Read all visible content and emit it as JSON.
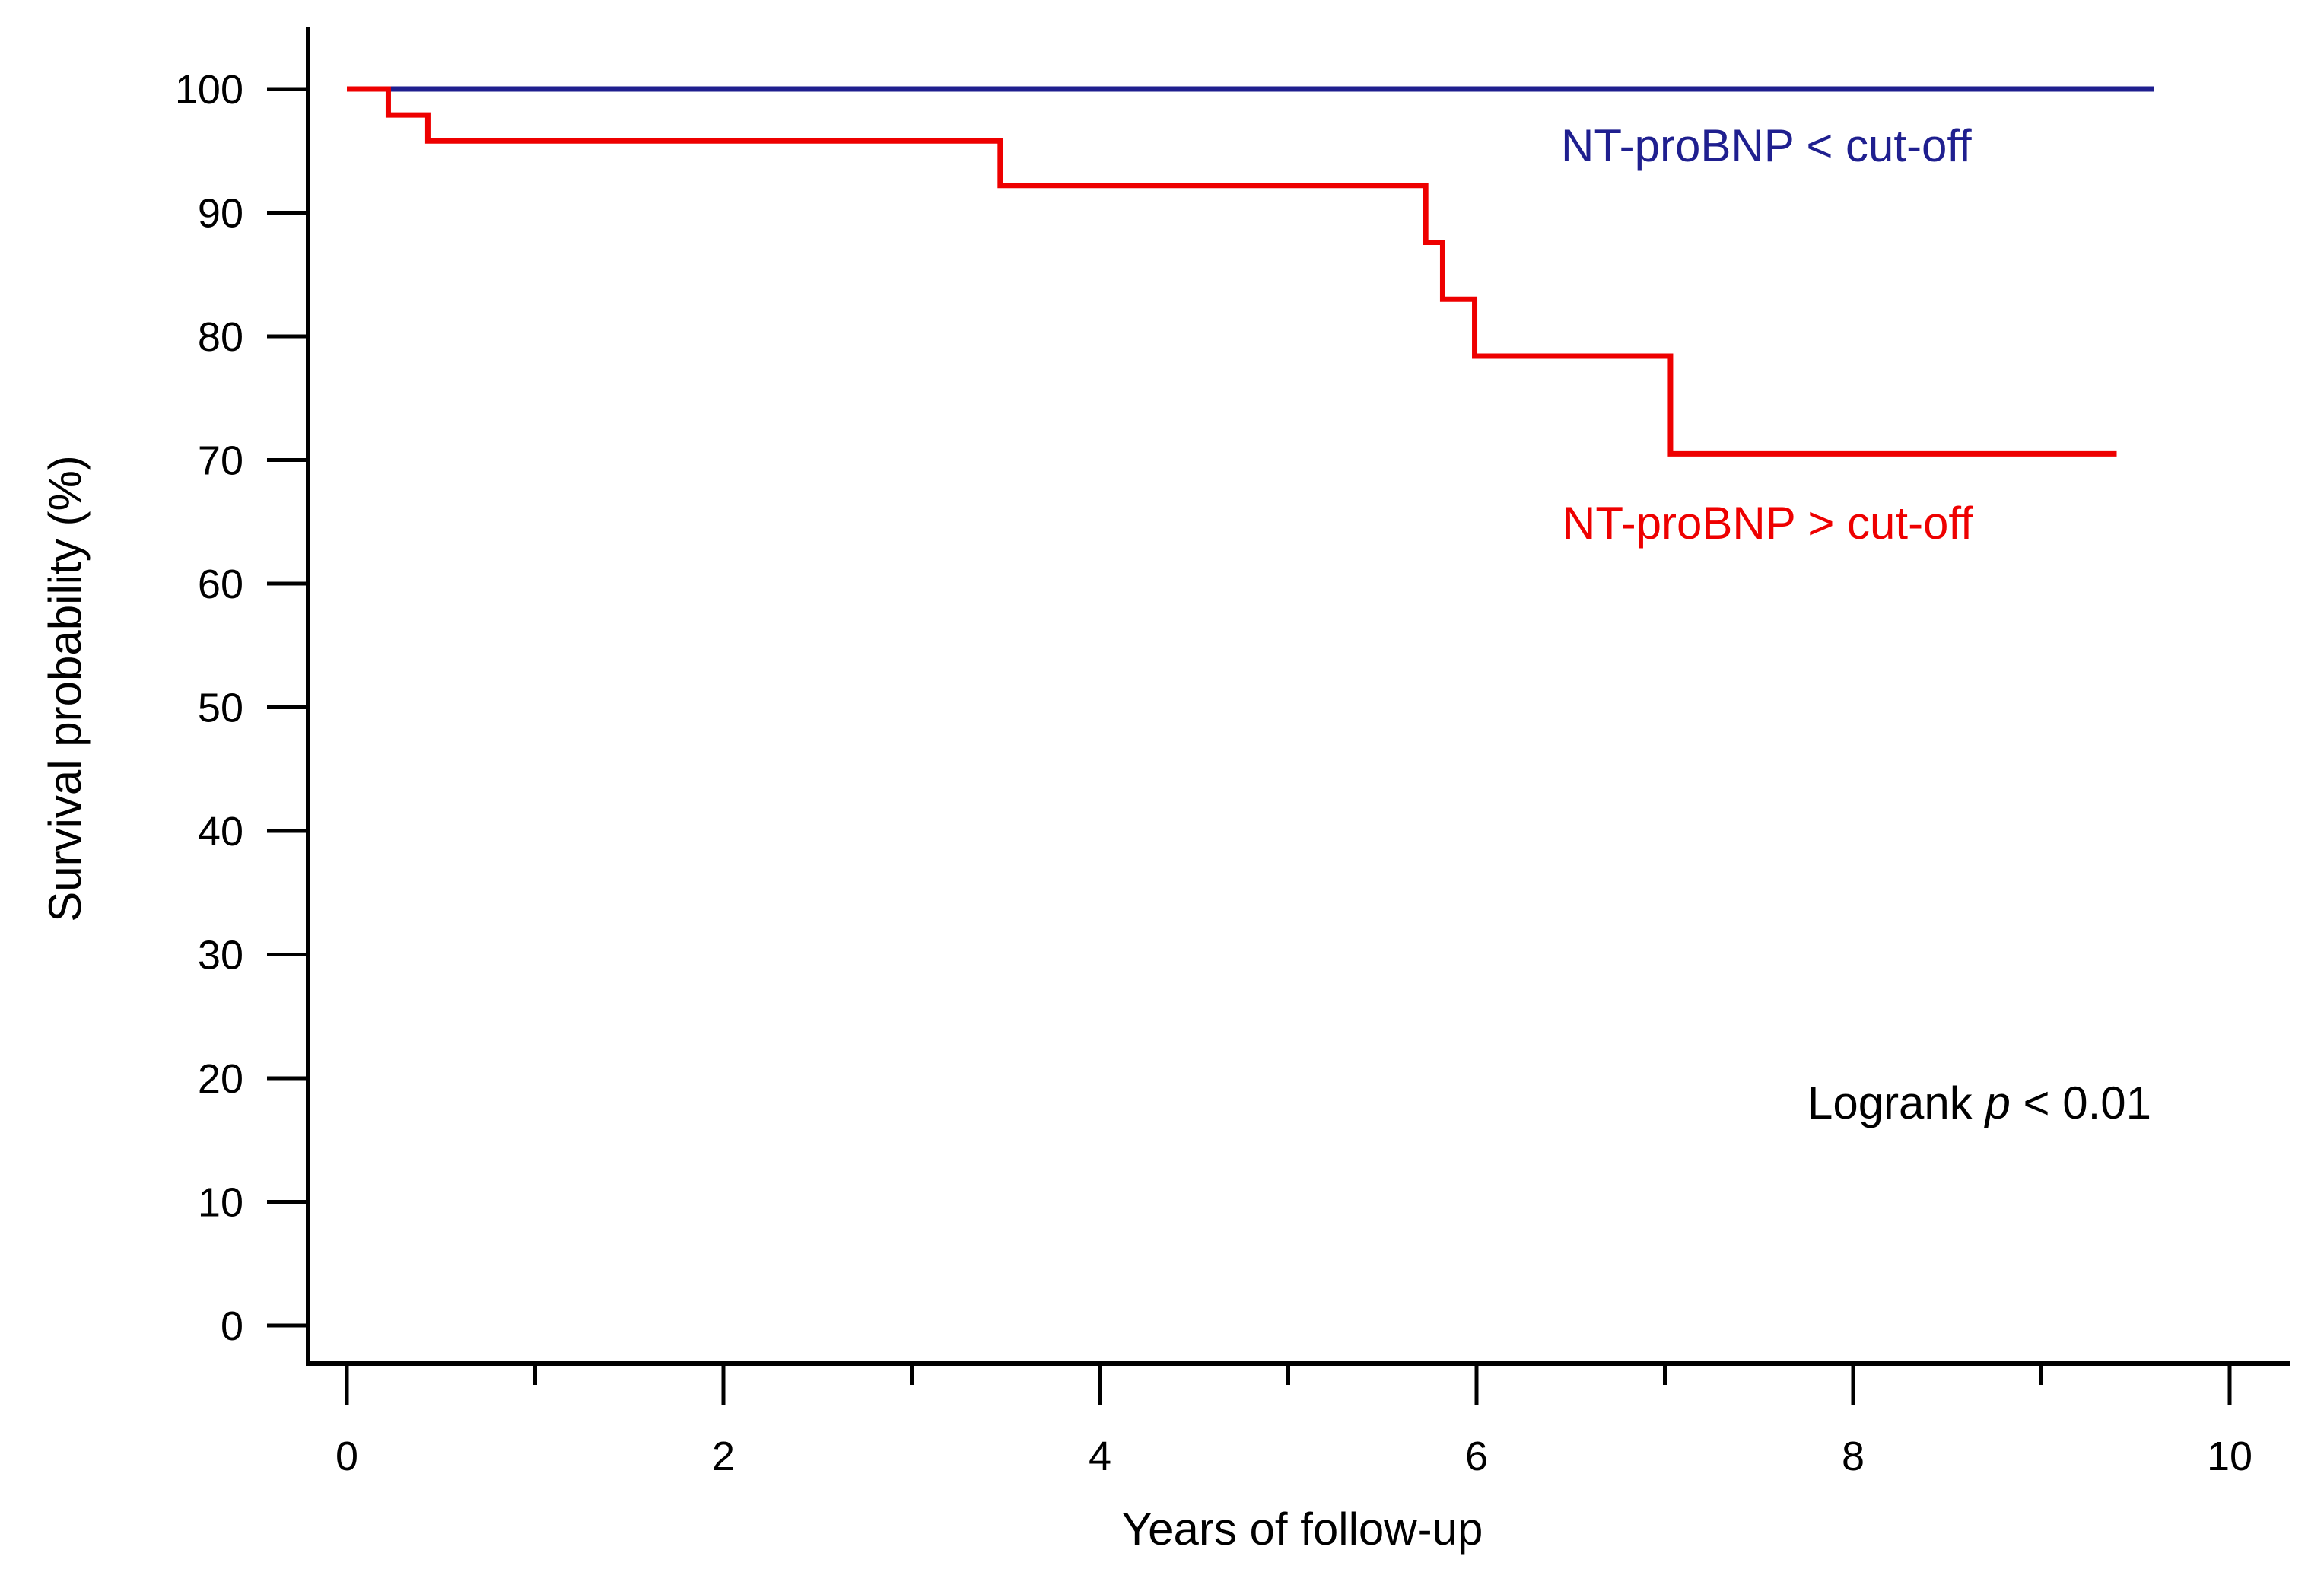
{
  "chart_data": {
    "type": "line",
    "subtype": "kaplan-meier step",
    "title": "",
    "xlabel": "Years of follow-up",
    "ylabel": "Survival probability (%)",
    "xlim": [
      0,
      10
    ],
    "ylim": [
      0,
      100
    ],
    "x_ticks": [
      0,
      2,
      4,
      6,
      8,
      10
    ],
    "x_minor_ticks": [
      1,
      3,
      5,
      7,
      9
    ],
    "y_ticks": [
      0,
      10,
      20,
      30,
      40,
      50,
      60,
      70,
      80,
      90,
      100
    ],
    "grid": false,
    "series": [
      {
        "name": "NT-proBNP < cut-off",
        "color": "#1f1f8f",
        "steps": [
          [
            0,
            100
          ],
          [
            9.6,
            100
          ]
        ]
      },
      {
        "name": "NT-proBNP > cut-off",
        "color": "#ee0000",
        "steps": [
          [
            0,
            100
          ],
          [
            0.22,
            97.9
          ],
          [
            0.43,
            95.8
          ],
          [
            3.47,
            92.2
          ],
          [
            5.73,
            87.6
          ],
          [
            5.82,
            83.0
          ],
          [
            5.99,
            78.4
          ],
          [
            7.03,
            70.5
          ],
          [
            9.4,
            70.5
          ]
        ]
      }
    ],
    "annotations": {
      "below_label": "NT-proBNP < cut-off",
      "above_label": "NT-proBNP > cut-off",
      "logrank_prefix": "Logrank ",
      "logrank_p": "p",
      "logrank_suffix": " < 0.01"
    }
  }
}
